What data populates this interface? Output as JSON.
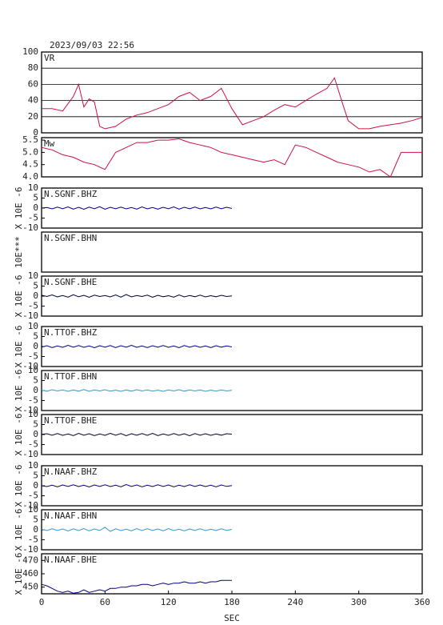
{
  "chart_data": [
    {
      "type": "line",
      "title": "2023/09/03 22:56",
      "label": "VR",
      "color": "#cc1144",
      "grid": true,
      "xlim": [
        0,
        360
      ],
      "ylim": [
        0,
        100
      ],
      "yticks": [
        0,
        20,
        40,
        60,
        80,
        100
      ],
      "x": [
        0,
        10,
        20,
        30,
        35,
        40,
        45,
        50,
        55,
        60,
        70,
        80,
        90,
        100,
        110,
        120,
        130,
        140,
        150,
        160,
        170,
        180,
        190,
        200,
        210,
        220,
        230,
        240,
        250,
        260,
        270,
        277,
        285,
        290,
        300,
        310,
        320,
        330,
        340,
        350,
        360
      ],
      "values": [
        30,
        30,
        27,
        45,
        60,
        32,
        42,
        38,
        8,
        5,
        8,
        17,
        22,
        25,
        30,
        35,
        45,
        50,
        40,
        45,
        55,
        30,
        10,
        15,
        20,
        28,
        35,
        32,
        40,
        48,
        55,
        68,
        35,
        15,
        5,
        5,
        8,
        10,
        12,
        15,
        19
      ]
    },
    {
      "type": "line",
      "label": "Mw",
      "color": "#cc1144",
      "xlim": [
        0,
        360
      ],
      "ylim": [
        4,
        5.6
      ],
      "yticks": [
        {
          "value": 4,
          "label": "4.0"
        },
        4.5,
        {
          "value": 5,
          "label": "5.0"
        },
        5.5
      ],
      "x": [
        0,
        10,
        20,
        30,
        40,
        50,
        55,
        60,
        70,
        80,
        90,
        100,
        110,
        120,
        130,
        140,
        150,
        160,
        170,
        180,
        190,
        200,
        210,
        220,
        230,
        240,
        250,
        260,
        270,
        280,
        290,
        300,
        310,
        320,
        330,
        340,
        350,
        360
      ],
      "values": [
        5.2,
        5.1,
        4.9,
        4.8,
        4.6,
        4.5,
        4.4,
        4.3,
        5.0,
        5.2,
        5.4,
        5.4,
        5.5,
        5.5,
        5.55,
        5.4,
        5.3,
        5.2,
        5.0,
        4.9,
        4.8,
        4.7,
        4.6,
        4.7,
        4.5,
        5.3,
        5.2,
        5.0,
        4.8,
        4.6,
        4.5,
        4.4,
        4.2,
        4.3,
        4.0,
        5.0,
        5.0,
        5.0
      ]
    },
    {
      "type": "line",
      "label": "N.SGNF.BHZ",
      "ylabel": "X 10E -6",
      "color": "#000080",
      "xlim": [
        0,
        360
      ],
      "ylim": [
        -10,
        10
      ],
      "yticks": [
        -10,
        -5,
        0,
        5,
        10
      ],
      "x": [
        0,
        5,
        10,
        15,
        20,
        25,
        30,
        35,
        40,
        45,
        50,
        55,
        60,
        65,
        70,
        75,
        80,
        85,
        90,
        95,
        100,
        105,
        110,
        115,
        120,
        125,
        130,
        135,
        140,
        145,
        150,
        155,
        160,
        165,
        170,
        175,
        180
      ],
      "values": [
        0,
        0.3,
        -0.4,
        0.5,
        -0.3,
        0.6,
        -0.5,
        0.4,
        -0.6,
        0.5,
        -0.3,
        0.7,
        -0.6,
        0.4,
        -0.3,
        0.5,
        -0.4,
        0.3,
        -0.5,
        0.6,
        -0.4,
        0.3,
        -0.5,
        0.4,
        -0.3,
        0.6,
        -0.5,
        0.4,
        -0.3,
        0.5,
        -0.4,
        0.3,
        -0.4,
        0.5,
        -0.3,
        0.4,
        -0.2
      ]
    },
    {
      "type": "line",
      "label": "N.SGNF.BHN",
      "ylabel": "10E***",
      "xlim": [
        0,
        360
      ]
    },
    {
      "type": "line",
      "label": "N.SGNF.BHE",
      "ylabel": "X 10E -6",
      "color": "#000033",
      "xlim": [
        0,
        360
      ],
      "ylim": [
        -10,
        10
      ],
      "yticks": [
        -10,
        -5,
        0,
        5,
        10
      ],
      "x": [
        0,
        5,
        10,
        15,
        20,
        25,
        30,
        35,
        40,
        45,
        50,
        55,
        60,
        65,
        70,
        75,
        80,
        85,
        90,
        95,
        100,
        105,
        110,
        115,
        120,
        125,
        130,
        135,
        140,
        145,
        150,
        155,
        160,
        165,
        170,
        175,
        180
      ],
      "values": [
        0.5,
        -0.2,
        0.6,
        -0.4,
        0.3,
        -0.5,
        0.7,
        -0.3,
        0.4,
        -0.6,
        0.5,
        -0.2,
        0.3,
        -0.4,
        0.6,
        -0.5,
        0.8,
        -0.4,
        0.3,
        -0.2,
        0.5,
        -0.6,
        0.4,
        -0.3,
        0.2,
        -0.5,
        0.6,
        -0.4,
        0.3,
        -0.3,
        0.5,
        -0.4,
        0.2,
        -0.3,
        0.4,
        -0.2,
        0.1
      ]
    },
    {
      "type": "line",
      "label": "N.TTOF.BHZ",
      "ylabel": "X 10E -6",
      "color": "#000080",
      "xlim": [
        0,
        360
      ],
      "ylim": [
        -10,
        10
      ],
      "yticks": [
        -10,
        -5,
        0,
        5,
        10
      ],
      "x": [
        0,
        5,
        10,
        15,
        20,
        25,
        30,
        35,
        40,
        45,
        50,
        55,
        60,
        65,
        70,
        75,
        80,
        85,
        90,
        95,
        100,
        105,
        110,
        115,
        120,
        125,
        130,
        135,
        140,
        145,
        150,
        155,
        160,
        165,
        170,
        175,
        180
      ],
      "values": [
        -0.3,
        0.4,
        -0.5,
        0.3,
        -0.4,
        0.6,
        -0.3,
        0.5,
        -0.4,
        0.3,
        -0.6,
        0.4,
        -0.3,
        0.5,
        -0.5,
        0.4,
        -0.3,
        0.6,
        -0.4,
        0.3,
        -0.5,
        0.4,
        -0.3,
        0.5,
        -0.4,
        0.3,
        -0.6,
        0.5,
        -0.3,
        0.4,
        -0.4,
        0.3,
        -0.5,
        0.4,
        -0.3,
        0.3,
        -0.2
      ]
    },
    {
      "type": "line",
      "label": "N.TTOF.BHN",
      "ylabel": "X 10E -6",
      "color": "#3399cc",
      "xlim": [
        0,
        360
      ],
      "ylim": [
        -10,
        10
      ],
      "yticks": [
        -10,
        -5,
        0,
        5,
        10
      ],
      "x": [
        0,
        5,
        10,
        15,
        20,
        25,
        30,
        35,
        40,
        45,
        50,
        55,
        60,
        65,
        70,
        75,
        80,
        85,
        90,
        95,
        100,
        105,
        110,
        115,
        120,
        125,
        130,
        135,
        140,
        145,
        150,
        155,
        160,
        165,
        170,
        175,
        180
      ],
      "values": [
        0.2,
        -0.3,
        0.4,
        -0.2,
        0.3,
        -0.4,
        0.3,
        -0.3,
        0.5,
        -0.4,
        0.3,
        -0.2,
        0.4,
        -0.3,
        0.2,
        -0.4,
        0.3,
        -0.3,
        0.4,
        -0.2,
        0.3,
        -0.3,
        0.2,
        -0.4,
        0.3,
        -0.2,
        0.4,
        -0.3,
        0.3,
        -0.2,
        0.3,
        -0.4,
        0.2,
        -0.3,
        0.3,
        -0.2,
        0.1
      ]
    },
    {
      "type": "line",
      "label": "N.TTOF.BHE",
      "ylabel": "X 10E -6",
      "color": "#000033",
      "xlim": [
        0,
        360
      ],
      "ylim": [
        -10,
        10
      ],
      "yticks": [
        -10,
        -5,
        0,
        5,
        10
      ],
      "x": [
        0,
        5,
        10,
        15,
        20,
        25,
        30,
        35,
        40,
        45,
        50,
        55,
        60,
        65,
        70,
        75,
        80,
        85,
        90,
        95,
        100,
        105,
        110,
        115,
        120,
        125,
        130,
        135,
        140,
        145,
        150,
        155,
        160,
        165,
        170,
        175,
        180
      ],
      "values": [
        0.1,
        0.4,
        -0.3,
        0.5,
        -0.4,
        0.3,
        -0.5,
        0.6,
        -0.3,
        0.4,
        -0.5,
        0.3,
        -0.4,
        0.6,
        -0.3,
        0.5,
        -0.6,
        0.4,
        -0.3,
        0.5,
        -0.4,
        0.6,
        -0.5,
        0.3,
        -0.4,
        0.5,
        -0.3,
        0.4,
        -0.6,
        0.5,
        -0.3,
        0.4,
        -0.4,
        0.3,
        -0.3,
        0.4,
        0.2
      ]
    },
    {
      "type": "line",
      "label": "N.NAAF.BHZ",
      "ylabel": "X 10E -6",
      "color": "#000080",
      "xlim": [
        0,
        360
      ],
      "ylim": [
        -10,
        10
      ],
      "yticks": [
        -10,
        -5,
        0,
        5,
        10
      ],
      "x": [
        0,
        5,
        10,
        15,
        20,
        25,
        30,
        35,
        40,
        45,
        50,
        55,
        60,
        65,
        70,
        75,
        80,
        85,
        90,
        95,
        100,
        105,
        110,
        115,
        120,
        125,
        130,
        135,
        140,
        145,
        150,
        155,
        160,
        165,
        170,
        175,
        180
      ],
      "values": [
        0,
        -0.4,
        0.3,
        -0.5,
        0.4,
        -0.3,
        0.5,
        -0.4,
        0.3,
        -0.6,
        0.4,
        -0.3,
        0.5,
        -0.4,
        0.3,
        -0.5,
        0.6,
        -0.3,
        0.4,
        -0.5,
        0.3,
        -0.4,
        0.5,
        -0.3,
        0.4,
        -0.5,
        0.3,
        -0.4,
        0.5,
        -0.3,
        0.4,
        -0.4,
        0.3,
        -0.5,
        0.4,
        -0.3,
        0.1
      ]
    },
    {
      "type": "line",
      "label": "N.NAAF.BHN",
      "ylabel": "X 10E -6",
      "color": "#3399cc",
      "xlim": [
        0,
        360
      ],
      "ylim": [
        -10,
        10
      ],
      "yticks": [
        -10,
        -5,
        0,
        5,
        10
      ],
      "x": [
        0,
        5,
        10,
        15,
        20,
        25,
        30,
        35,
        40,
        45,
        50,
        55,
        60,
        65,
        70,
        75,
        80,
        85,
        90,
        95,
        100,
        105,
        110,
        115,
        120,
        125,
        130,
        135,
        140,
        145,
        150,
        155,
        160,
        165,
        170,
        175,
        180
      ],
      "values": [
        0.3,
        -0.4,
        0.5,
        -0.3,
        0.4,
        -0.6,
        0.5,
        -0.4,
        0.6,
        -0.5,
        0.4,
        -0.3,
        1.2,
        -0.8,
        0.5,
        -0.4,
        0.3,
        -0.5,
        0.6,
        -0.4,
        0.5,
        -0.3,
        0.4,
        -0.5,
        0.6,
        -0.4,
        0.3,
        -0.5,
        0.4,
        -0.3,
        0.5,
        -0.4,
        0.3,
        -0.4,
        0.5,
        -0.3,
        0.2
      ]
    },
    {
      "type": "line",
      "label": "N.NAAF.BHE",
      "ylabel": "X 10E -6",
      "color": "#000080",
      "xlim": [
        0,
        360
      ],
      "ylim": [
        445,
        475
      ],
      "yticks": [
        450,
        460,
        470
      ],
      "xticks": [
        0,
        60,
        120,
        180,
        240,
        300,
        360
      ],
      "xlabel": "SEC",
      "x": [
        0,
        5,
        10,
        15,
        20,
        25,
        30,
        35,
        40,
        45,
        50,
        55,
        60,
        65,
        70,
        75,
        80,
        85,
        90,
        95,
        100,
        105,
        110,
        115,
        120,
        125,
        130,
        135,
        140,
        145,
        150,
        155,
        160,
        165,
        170,
        175,
        180
      ],
      "values": [
        452,
        451,
        449,
        447,
        446,
        447,
        445.5,
        446,
        448,
        446,
        447,
        448,
        447,
        449,
        449,
        450,
        450,
        451,
        451,
        452,
        452,
        451,
        452,
        453,
        452,
        453,
        453,
        454,
        453,
        453,
        454,
        453,
        454,
        454,
        455,
        455,
        455
      ]
    }
  ]
}
